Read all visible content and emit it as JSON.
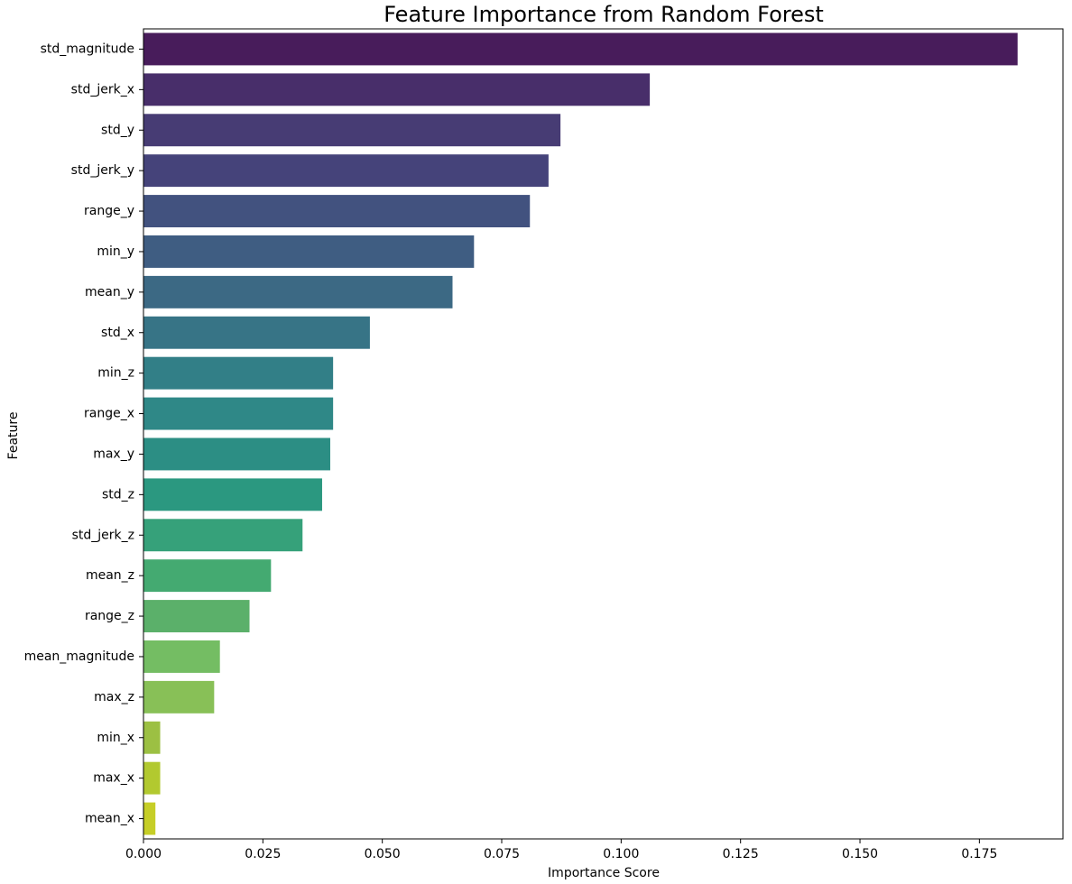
{
  "chart_data": {
    "type": "bar",
    "orientation": "horizontal",
    "title": "Feature Importance from Random Forest",
    "xlabel": "Importance Score",
    "ylabel": "Feature",
    "categories": [
      "std_magnitude",
      "std_jerk_x",
      "std_y",
      "std_jerk_y",
      "range_y",
      "min_y",
      "mean_y",
      "std_x",
      "min_z",
      "range_x",
      "max_y",
      "std_z",
      "std_jerk_z",
      "mean_z",
      "range_z",
      "mean_magnitude",
      "max_z",
      "min_x",
      "max_x",
      "mean_x"
    ],
    "values": [
      0.183,
      0.106,
      0.0873,
      0.0848,
      0.0809,
      0.0692,
      0.0647,
      0.0474,
      0.0397,
      0.0397,
      0.0391,
      0.0374,
      0.0333,
      0.0267,
      0.0222,
      0.016,
      0.0148,
      0.0035,
      0.0035,
      0.0025
    ],
    "colors": [
      "#481c5b",
      "#482e6a",
      "#473c74",
      "#45437a",
      "#42527f",
      "#3f5d82",
      "#3c6984",
      "#377486",
      "#327f87",
      "#2f8887",
      "#2c8e84",
      "#2b9880",
      "#36a17a",
      "#44aa71",
      "#5bb06a",
      "#74bd63",
      "#88c057",
      "#9cc043",
      "#b2c92f",
      "#c6ce27"
    ],
    "xlim": [
      0,
      0.1925
    ],
    "xticks": [
      0.0,
      0.025,
      0.05,
      0.075,
      0.1,
      0.125,
      0.15,
      0.175
    ],
    "xtick_labels": [
      "0.000",
      "0.025",
      "0.050",
      "0.075",
      "0.100",
      "0.125",
      "0.150",
      "0.175"
    ],
    "grid": false,
    "legend": "none"
  }
}
